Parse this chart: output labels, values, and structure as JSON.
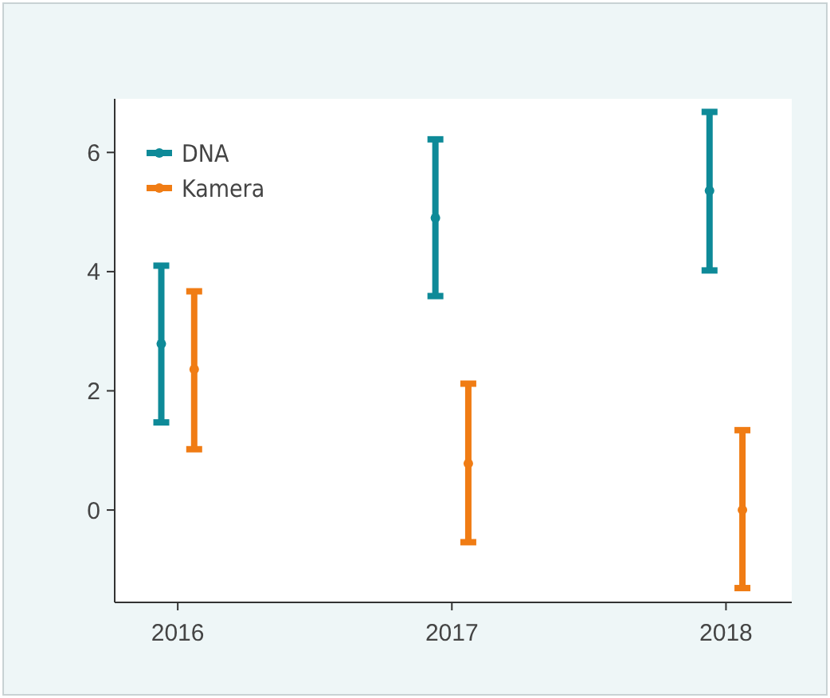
{
  "chart_data": {
    "type": "scatter",
    "xlim": [
      2015.77,
      2018.24
    ],
    "xticks": [
      2016,
      2017,
      2018
    ],
    "ylim": [
      -1.55,
      6.9
    ],
    "yticks": [
      0,
      2,
      4,
      6
    ],
    "marker": "circle",
    "legend": "top left",
    "series": [
      {
        "name": "DNA",
        "color": "#0e8a98",
        "x": [
          2015.94,
          2016.94,
          2017.94
        ],
        "values": [
          2.79,
          4.9,
          5.36
        ],
        "errors": [
          [
            1.47,
            4.1
          ],
          [
            3.59,
            6.22
          ],
          [
            4.02,
            6.68
          ]
        ]
      },
      {
        "name": "Kamera",
        "color": "#f07c14",
        "x": [
          2016.06,
          2017.06,
          2018.06
        ],
        "values": [
          2.36,
          0.78,
          0
        ],
        "errors": [
          [
            1.02,
            3.67
          ],
          [
            -0.54,
            2.12
          ],
          [
            -1.31,
            1.34
          ]
        ]
      }
    ]
  }
}
